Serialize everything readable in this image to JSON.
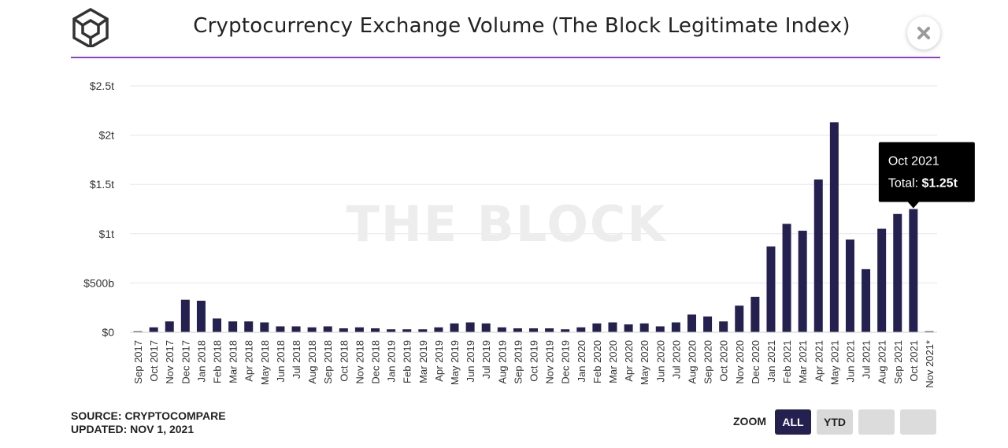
{
  "header": {
    "title": "Cryptocurrency Exchange Volume (The Block Legitimate Index)",
    "logo_icon": "cube-logo-icon",
    "close_icon": "close-icon",
    "rule_color": "#8e3fc8"
  },
  "watermark": "THE BLOCK",
  "tooltip": {
    "line1": "Oct 2021",
    "line2_prefix": "Total: ",
    "line2_value": "$1.25t",
    "category": "Oct 2021"
  },
  "footer": {
    "source": "SOURCE: CRYPTOCOMPARE",
    "updated": "UPDATED: NOV 1, 2021"
  },
  "zoom": {
    "label": "ZOOM",
    "buttons": [
      "ALL",
      "YTD",
      "",
      ""
    ],
    "active": "ALL"
  },
  "colors": {
    "bar": "#24204f",
    "tooltip_bg": "#000000",
    "grid": "#e6e6e6"
  },
  "chart_data": {
    "type": "bar",
    "title": "Cryptocurrency Exchange Volume (The Block Legitimate Index)",
    "xlabel": "",
    "ylabel": "",
    "ylim": [
      0,
      2.5
    ],
    "yticks": [
      0,
      0.5,
      1,
      1.5,
      2,
      2.5
    ],
    "ytick_labels": [
      "$0",
      "$500b",
      "$1t",
      "$1.5t",
      "$2t",
      "$2.5t"
    ],
    "grid": true,
    "categories": [
      "Sep 2017",
      "Oct 2017",
      "Nov 2017",
      "Dec 2017",
      "Jan 2018",
      "Feb 2018",
      "Mar 2018",
      "Apr 2018",
      "May 2018",
      "Jun 2018",
      "Jul 2018",
      "Aug 2018",
      "Sep 2018",
      "Oct 2018",
      "Nov 2018",
      "Dec 2018",
      "Jan 2019",
      "Feb 2019",
      "Mar 2019",
      "Apr 2019",
      "May 2019",
      "Jun 2019",
      "Jul 2019",
      "Aug 2019",
      "Sep 2019",
      "Oct 2019",
      "Nov 2019",
      "Dec 2019",
      "Jan 2020",
      "Feb 2020",
      "Mar 2020",
      "Apr 2020",
      "May 2020",
      "Jun 2020",
      "Jul 2020",
      "Aug 2020",
      "Sep 2020",
      "Oct 2020",
      "Nov 2020",
      "Dec 2020",
      "Jan 2021",
      "Feb 2021",
      "Mar 2021",
      "Apr 2021",
      "May 2021",
      "Jun 2021",
      "Jul 2021",
      "Aug 2021",
      "Sep 2021",
      "Oct 2021",
      "Nov 2021*"
    ],
    "values": [
      0.01,
      0.05,
      0.11,
      0.33,
      0.32,
      0.14,
      0.11,
      0.11,
      0.1,
      0.06,
      0.06,
      0.05,
      0.06,
      0.04,
      0.05,
      0.04,
      0.03,
      0.03,
      0.03,
      0.05,
      0.09,
      0.1,
      0.09,
      0.05,
      0.04,
      0.04,
      0.04,
      0.03,
      0.05,
      0.09,
      0.1,
      0.08,
      0.09,
      0.06,
      0.1,
      0.18,
      0.16,
      0.11,
      0.27,
      0.36,
      0.87,
      1.1,
      1.03,
      1.55,
      2.13,
      0.94,
      0.64,
      1.05,
      1.2,
      1.25,
      0.01
    ]
  }
}
